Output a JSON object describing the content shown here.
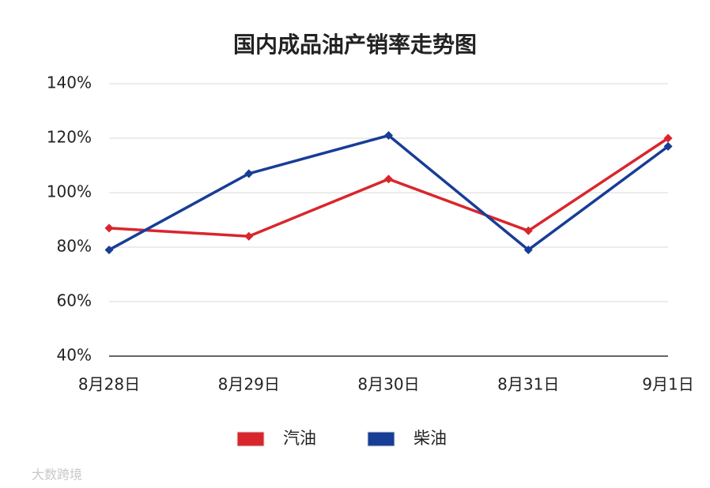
{
  "chart_data": {
    "type": "line",
    "title": "国内成品油产销率走势图",
    "categories": [
      "8月28日",
      "8月29日",
      "8月30日",
      "8月31日",
      "9月1日"
    ],
    "series": [
      {
        "name": "汽油",
        "color": "#d9262c",
        "values": [
          87,
          84,
          105,
          86,
          120
        ]
      },
      {
        "name": "柴油",
        "color": "#173d96",
        "values": [
          79,
          107,
          121,
          79,
          117
        ]
      }
    ],
    "ylim": [
      40,
      140
    ],
    "yticks": [
      {
        "value": 40,
        "label": "40%"
      },
      {
        "value": 60,
        "label": "60%"
      },
      {
        "value": 80,
        "label": "80%"
      },
      {
        "value": 100,
        "label": "100%"
      },
      {
        "value": 120,
        "label": "120%"
      },
      {
        "value": 140,
        "label": "140%"
      }
    ],
    "grid": true,
    "legend": "bottom"
  },
  "watermark": "大数跨境"
}
